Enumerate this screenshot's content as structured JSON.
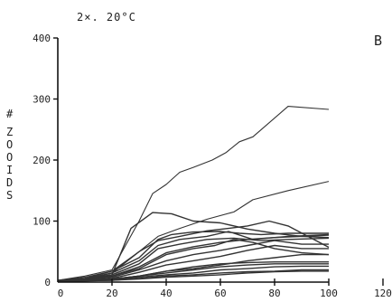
{
  "chart_data": {
    "type": "line",
    "title": "2×. 20°C",
    "panel_label": "B",
    "ylabel_symbol": "#",
    "ylabel_chars": [
      "Z",
      "O",
      "O",
      "I",
      "D",
      "S"
    ],
    "xlim": [
      0,
      120
    ],
    "ylim": [
      0,
      400
    ],
    "xticks": [
      0,
      20,
      40,
      60,
      80,
      100,
      120
    ],
    "yticks": [
      0,
      100,
      200,
      300,
      400
    ],
    "line_color": "#333333",
    "series": [
      {
        "x": [
          0,
          10,
          20,
          25,
          30,
          35,
          40,
          45,
          50,
          57,
          62,
          67,
          72,
          85,
          100
        ],
        "values": [
          3,
          10,
          20,
          60,
          100,
          145,
          160,
          180,
          188,
          200,
          212,
          230,
          238,
          288,
          283
        ]
      },
      {
        "x": [
          0,
          10,
          20,
          30,
          37,
          45,
          55,
          65,
          72,
          85,
          100
        ],
        "values": [
          3,
          8,
          18,
          50,
          75,
          88,
          103,
          115,
          135,
          150,
          165
        ]
      },
      {
        "x": [
          0,
          10,
          20,
          27,
          35,
          42,
          50,
          60,
          70,
          80,
          90,
          100
        ],
        "values": [
          3,
          6,
          12,
          88,
          114,
          112,
          100,
          97,
          87,
          80,
          75,
          73
        ]
      },
      {
        "x": [
          0,
          10,
          20,
          30,
          37,
          45,
          55,
          63,
          70,
          78,
          85,
          100
        ],
        "values": [
          2,
          5,
          15,
          50,
          68,
          75,
          84,
          88,
          92,
          100,
          92,
          57
        ]
      },
      {
        "x": [
          0,
          10,
          20,
          30,
          37,
          42,
          50,
          60,
          67,
          75,
          85,
          100
        ],
        "values": [
          2,
          6,
          18,
          40,
          70,
          78,
          82,
          83,
          80,
          78,
          80,
          80
        ]
      },
      {
        "x": [
          0,
          10,
          20,
          30,
          37,
          45,
          55,
          63,
          72,
          85,
          100
        ],
        "values": [
          2,
          5,
          15,
          35,
          60,
          70,
          75,
          83,
          70,
          75,
          78
        ]
      },
      {
        "x": [
          0,
          10,
          20,
          30,
          37,
          45,
          55,
          65,
          75,
          85,
          100
        ],
        "values": [
          2,
          4,
          12,
          30,
          55,
          62,
          70,
          72,
          68,
          70,
          72
        ]
      },
      {
        "x": [
          0,
          10,
          20,
          30,
          40,
          50,
          60,
          70,
          80,
          90,
          100
        ],
        "values": [
          2,
          4,
          10,
          25,
          48,
          58,
          65,
          70,
          73,
          75,
          77
        ]
      },
      {
        "x": [
          0,
          10,
          20,
          30,
          40,
          50,
          58,
          65,
          72,
          80,
          90,
          100
        ],
        "values": [
          2,
          4,
          10,
          22,
          45,
          55,
          60,
          70,
          65,
          55,
          48,
          45
        ]
      },
      {
        "x": [
          0,
          10,
          20,
          30,
          40,
          50,
          60,
          70,
          80,
          90,
          100
        ],
        "values": [
          2,
          4,
          8,
          20,
          35,
          45,
          52,
          60,
          68,
          62,
          62
        ]
      },
      {
        "x": [
          0,
          10,
          20,
          30,
          40,
          50,
          60,
          70,
          80,
          90,
          100
        ],
        "values": [
          2,
          3,
          6,
          16,
          28,
          35,
          42,
          52,
          60,
          55,
          55
        ]
      },
      {
        "x": [
          0,
          10,
          20,
          30,
          40,
          50,
          60,
          70,
          80,
          90,
          100
        ],
        "values": [
          2,
          3,
          5,
          10,
          18,
          22,
          28,
          35,
          40,
          45,
          45
        ]
      },
      {
        "x": [
          0,
          10,
          20,
          30,
          40,
          50,
          60,
          70,
          80,
          90,
          100
        ],
        "values": [
          1,
          3,
          5,
          10,
          18,
          25,
          30,
          32,
          33,
          33,
          33
        ]
      },
      {
        "x": [
          0,
          10,
          20,
          30,
          40,
          50,
          60,
          70,
          80,
          90,
          100
        ],
        "values": [
          1,
          3,
          5,
          10,
          15,
          20,
          25,
          28,
          30,
          30,
          30
        ]
      },
      {
        "x": [
          0,
          10,
          20,
          30,
          40,
          50,
          60,
          70,
          80,
          90,
          100
        ],
        "values": [
          1,
          2,
          4,
          8,
          12,
          15,
          20,
          22,
          25,
          26,
          26
        ]
      },
      {
        "x": [
          0,
          10,
          20,
          30,
          40,
          50,
          60,
          70,
          80,
          90,
          100
        ],
        "values": [
          1,
          2,
          3,
          6,
          10,
          12,
          15,
          17,
          18,
          20,
          20
        ]
      },
      {
        "x": [
          0,
          10,
          20,
          30,
          40,
          50,
          60,
          70,
          80,
          90,
          100
        ],
        "values": [
          1,
          2,
          3,
          5,
          8,
          10,
          12,
          15,
          17,
          18,
          18
        ]
      }
    ]
  }
}
